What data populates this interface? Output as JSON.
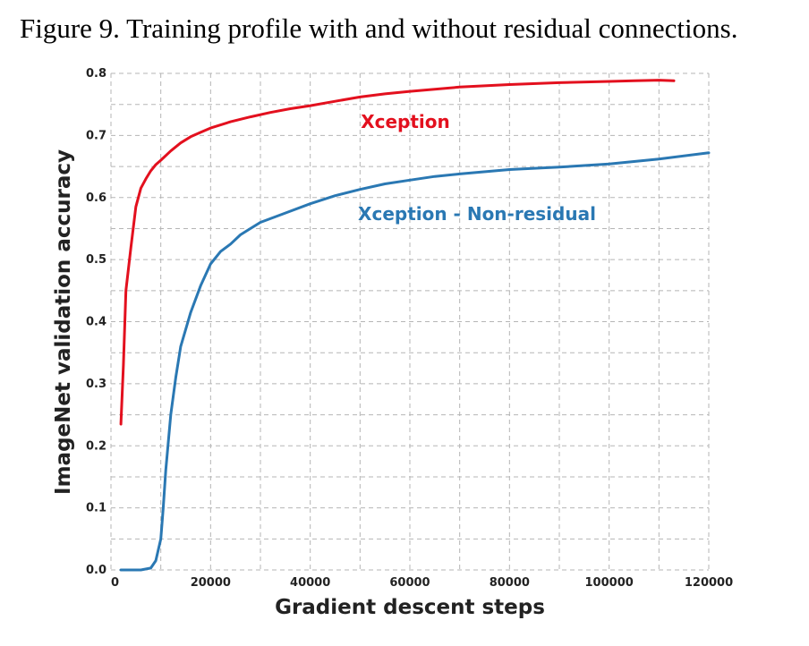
{
  "caption": "Figure 9. Training profile with and without residual connections.",
  "chart_data": {
    "type": "line",
    "xlabel": "Gradient descent steps",
    "ylabel": "ImageNet validation accuracy",
    "xlim": [
      0,
      120000
    ],
    "ylim": [
      0.0,
      0.8
    ],
    "x_ticks": [
      "0",
      "20000",
      "40000",
      "60000",
      "80000",
      "100000",
      "120000"
    ],
    "y_ticks": [
      "0.0",
      "0.1",
      "0.2",
      "0.3",
      "0.4",
      "0.5",
      "0.6",
      "0.7",
      "0.8"
    ],
    "grid": true,
    "series": [
      {
        "name": "Xception",
        "color": "#e3101e",
        "x": [
          2000,
          2500,
          3000,
          4000,
          5000,
          6000,
          7000,
          8000,
          9000,
          10000,
          12000,
          14000,
          16000,
          18000,
          20000,
          24000,
          28000,
          32000,
          36000,
          40000,
          45000,
          50000,
          55000,
          60000,
          70000,
          80000,
          90000,
          100000,
          105000,
          110000,
          113000
        ],
        "y": [
          0.235,
          0.33,
          0.45,
          0.52,
          0.585,
          0.615,
          0.63,
          0.643,
          0.653,
          0.66,
          0.675,
          0.688,
          0.698,
          0.705,
          0.712,
          0.722,
          0.73,
          0.737,
          0.743,
          0.748,
          0.755,
          0.762,
          0.767,
          0.771,
          0.778,
          0.782,
          0.785,
          0.787,
          0.788,
          0.789,
          0.788
        ]
      },
      {
        "name": "Xception - Non-residual",
        "color": "#2a78b3",
        "x": [
          2000,
          4000,
          6000,
          8000,
          9000,
          10000,
          10500,
          11000,
          12000,
          13000,
          14000,
          16000,
          18000,
          20000,
          22000,
          24000,
          26000,
          28000,
          30000,
          35000,
          40000,
          45000,
          50000,
          55000,
          60000,
          65000,
          70000,
          80000,
          90000,
          100000,
          110000,
          120000
        ],
        "y": [
          0.0,
          0.0,
          0.0,
          0.003,
          0.015,
          0.05,
          0.1,
          0.16,
          0.25,
          0.31,
          0.36,
          0.415,
          0.458,
          0.493,
          0.513,
          0.525,
          0.54,
          0.55,
          0.56,
          0.575,
          0.59,
          0.603,
          0.613,
          0.622,
          0.628,
          0.634,
          0.638,
          0.645,
          0.649,
          0.654,
          0.662,
          0.672
        ]
      }
    ]
  }
}
